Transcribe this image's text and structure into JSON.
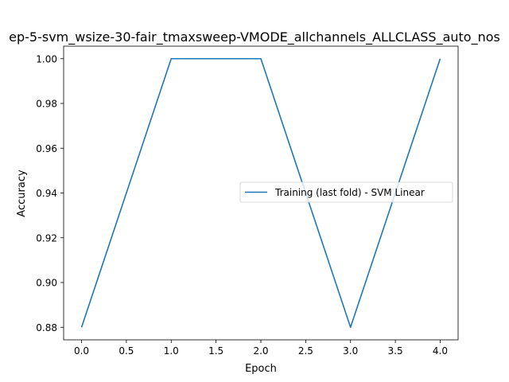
{
  "chart_data": {
    "type": "line",
    "title": "ep-5-svm_wsize-30-fair_tmaxsweep-VMODE_allchannels_ALLCLASS_auto_nos",
    "xlabel": "Epoch",
    "ylabel": "Accuracy",
    "xlim": [
      -0.2,
      4.2
    ],
    "ylim": [
      0.8744,
      1.0056
    ],
    "xticks": [
      0.0,
      0.5,
      1.0,
      1.5,
      2.0,
      2.5,
      3.0,
      3.5,
      4.0
    ],
    "xtick_labels": [
      "0.0",
      "0.5",
      "1.0",
      "1.5",
      "2.0",
      "2.5",
      "3.0",
      "3.5",
      "4.0"
    ],
    "yticks": [
      0.88,
      0.9,
      0.92,
      0.94,
      0.96,
      0.98,
      1.0
    ],
    "ytick_labels": [
      "0.88",
      "0.90",
      "0.92",
      "0.94",
      "0.96",
      "0.98",
      "1.00"
    ],
    "grid": false,
    "legend_position": "center-right",
    "series": [
      {
        "name": "Training (last fold) - SVM Linear",
        "color": "#1f77b4",
        "x": [
          0,
          1,
          2,
          3,
          4
        ],
        "y": [
          0.88,
          1.0,
          1.0,
          0.88,
          1.0
        ]
      }
    ]
  }
}
